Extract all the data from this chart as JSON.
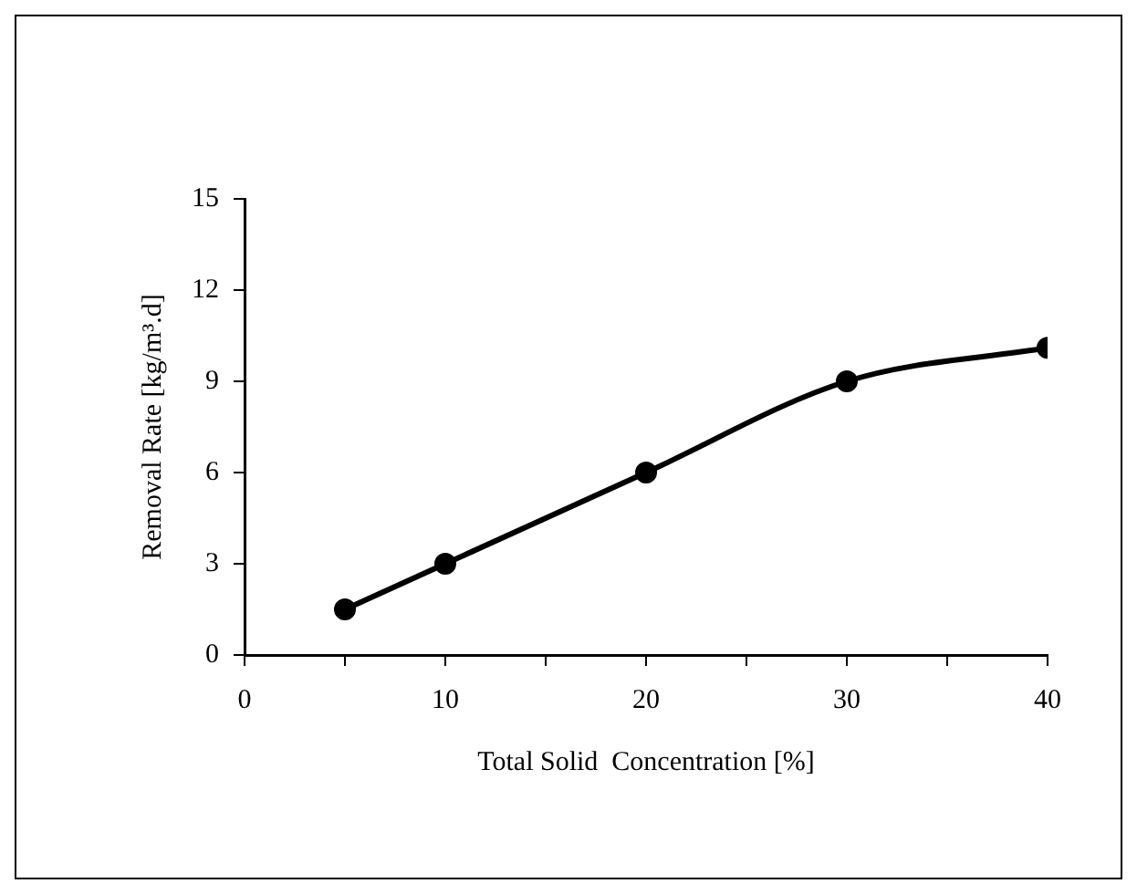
{
  "chart_data": {
    "type": "line",
    "xlabel": "Total Solid  Concentration [%]",
    "ylabel": "Removal Rate [kg/m³.d]",
    "x": [
      5,
      10,
      20,
      30,
      40
    ],
    "series": [
      {
        "color": "#000000",
        "values": [
          1.5,
          3,
          6,
          9,
          10.1
        ]
      }
    ],
    "xlim": [
      0,
      40
    ],
    "xticks": [
      0,
      {
        "value": 5,
        "label": null
      },
      10,
      {
        "value": 15,
        "label": null
      },
      20,
      {
        "value": 25,
        "label": null
      },
      30,
      {
        "value": 35,
        "label": null
      },
      40
    ],
    "ylim": [
      0,
      15
    ],
    "yticks": [
      0,
      3,
      6,
      9,
      12,
      15
    ],
    "marker": "circle",
    "line_style": "solid",
    "legend": false
  }
}
